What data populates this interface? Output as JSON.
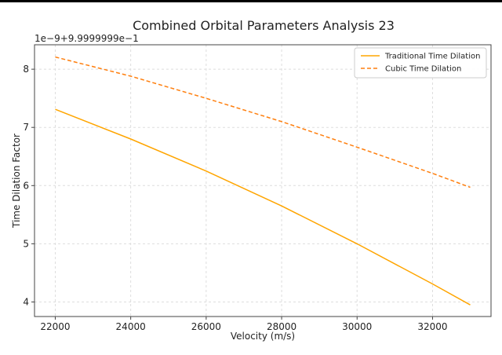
{
  "chart_data": {
    "type": "line",
    "title": "Combined Orbital Parameters Analysis 23",
    "xlabel": "Velocity (m/s)",
    "ylabel": "Time Dilation Factor",
    "y_offset_label": "1e−9+9.9999999e−1",
    "xlim": [
      21450,
      33550
    ],
    "ylim": [
      3.75,
      8.42
    ],
    "x_ticks": [
      22000,
      24000,
      26000,
      28000,
      30000,
      32000
    ],
    "y_ticks": [
      4,
      5,
      6,
      7,
      8
    ],
    "grid": true,
    "legend_position": "top-right",
    "series": [
      {
        "name": "Traditional Time Dilation",
        "color": "#ffa500",
        "style": "solid",
        "x": [
          22000,
          24000,
          26000,
          28000,
          30000,
          32000,
          33000
        ],
        "y": [
          7.31,
          6.8,
          6.25,
          5.65,
          5.0,
          4.31,
          3.95
        ]
      },
      {
        "name": "Cubic Time Dilation",
        "color": "#ff7f0e",
        "style": "dashed",
        "x": [
          22000,
          24000,
          26000,
          28000,
          30000,
          32000,
          33000
        ],
        "y": [
          8.21,
          7.88,
          7.5,
          7.1,
          6.66,
          6.21,
          5.97
        ]
      }
    ]
  }
}
